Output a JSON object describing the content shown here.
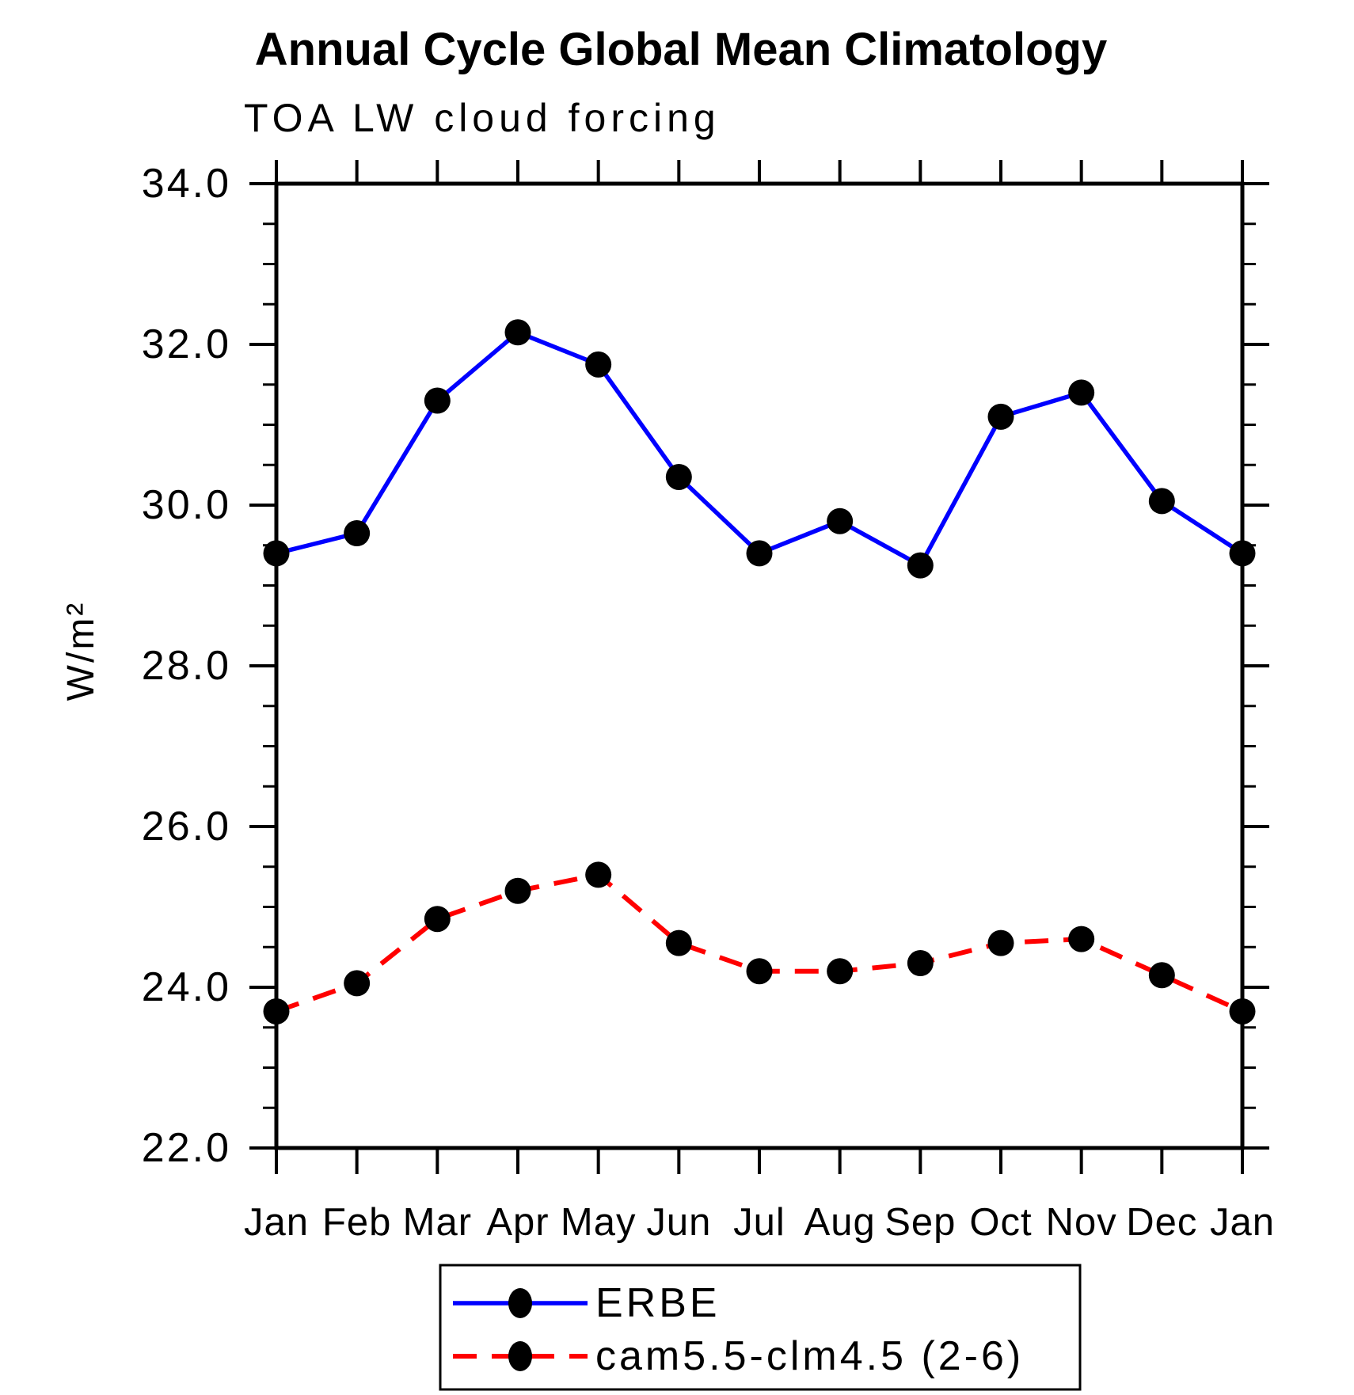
{
  "chart_data": {
    "type": "line",
    "title": "Annual Cycle Global Mean Climatology",
    "subtitle": "TOA LW cloud forcing",
    "xlabel": "",
    "ylabel": "W/m²",
    "categories": [
      "Jan",
      "Feb",
      "Mar",
      "Apr",
      "May",
      "Jun",
      "Jul",
      "Aug",
      "Sep",
      "Oct",
      "Nov",
      "Dec",
      "Jan"
    ],
    "ylim": [
      22.0,
      34.0
    ],
    "ytick_labels": [
      "22.0",
      "24.0",
      "26.0",
      "28.0",
      "30.0",
      "32.0",
      "34.0"
    ],
    "ytick_major_step": 2.0,
    "ytick_minor_step": 0.5,
    "grid": false,
    "legend_position": "bottom-center",
    "colors": {
      "axis": "#000000",
      "marker": "#000000",
      "erbe_line": "#0000ff",
      "cam_line": "#ff0000"
    },
    "series": [
      {
        "name": "ERBE",
        "color": "#0000ff",
        "line_style": "solid",
        "marker": "filled-circle",
        "marker_color": "#000000",
        "values": [
          29.4,
          29.65,
          31.3,
          32.15,
          31.75,
          30.35,
          29.4,
          29.8,
          29.25,
          31.1,
          31.4,
          30.05,
          29.4
        ]
      },
      {
        "name": "cam5.5-clm4.5 (2-6)",
        "color": "#ff0000",
        "line_style": "dashed",
        "marker": "filled-circle",
        "marker_color": "#000000",
        "values": [
          23.7,
          24.05,
          24.85,
          25.2,
          25.4,
          24.55,
          24.2,
          24.2,
          24.3,
          24.55,
          24.6,
          24.15,
          23.7
        ]
      }
    ]
  }
}
